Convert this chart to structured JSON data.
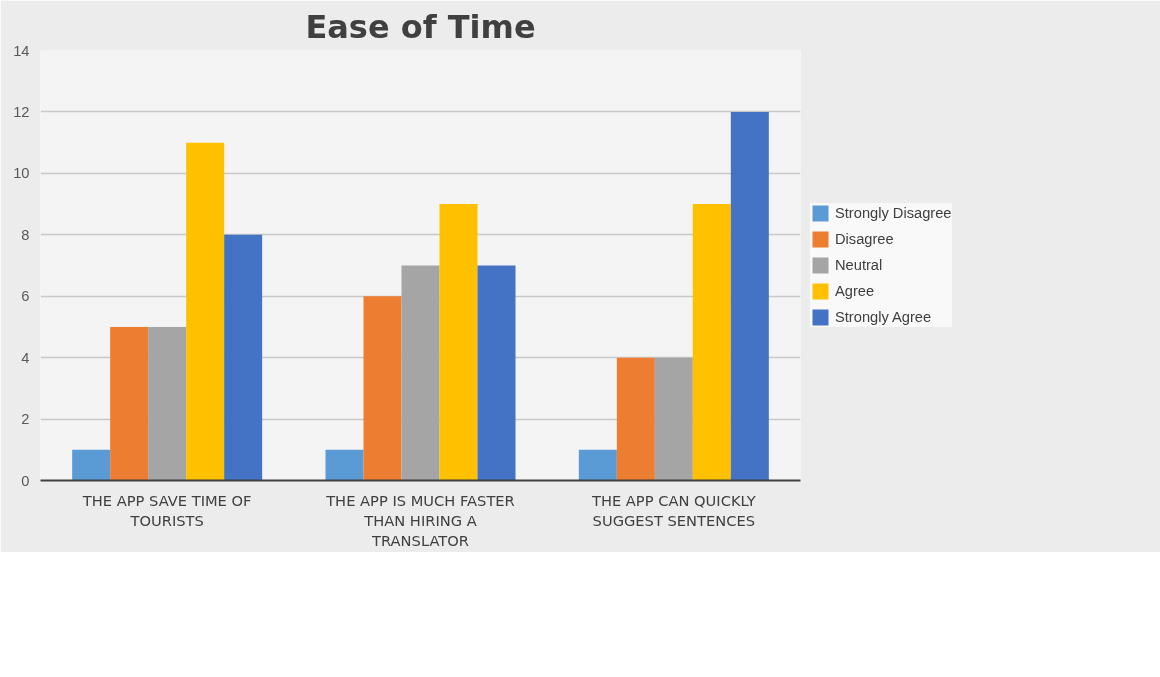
{
  "chart_data": {
    "type": "bar",
    "title": "Ease of Time",
    "categories": [
      "THE APP SAVE TIME OF TOURISTS",
      "THE APP IS MUCH FASTER THAN HIRING A TRANSLATOR",
      "THE APP CAN QUICKLY SUGGEST SENTENCES"
    ],
    "series": [
      {
        "name": "Strongly Disagree",
        "color": "#5b9bd5",
        "values": [
          1,
          1,
          1
        ]
      },
      {
        "name": "Disagree",
        "color": "#ed7d31",
        "values": [
          5,
          6,
          4
        ]
      },
      {
        "name": "Neutral",
        "color": "#a5a5a5",
        "values": [
          5,
          7,
          4
        ]
      },
      {
        "name": "Agree",
        "color": "#ffc000",
        "values": [
          11,
          9,
          9
        ]
      },
      {
        "name": "Strongly Agree",
        "color": "#4472c4",
        "values": [
          8,
          7,
          12
        ]
      }
    ],
    "ylim": [
      0,
      14
    ],
    "yticks": [
      0,
      2,
      4,
      6,
      8,
      10,
      12,
      14
    ],
    "grid": "y",
    "legend": "right"
  }
}
